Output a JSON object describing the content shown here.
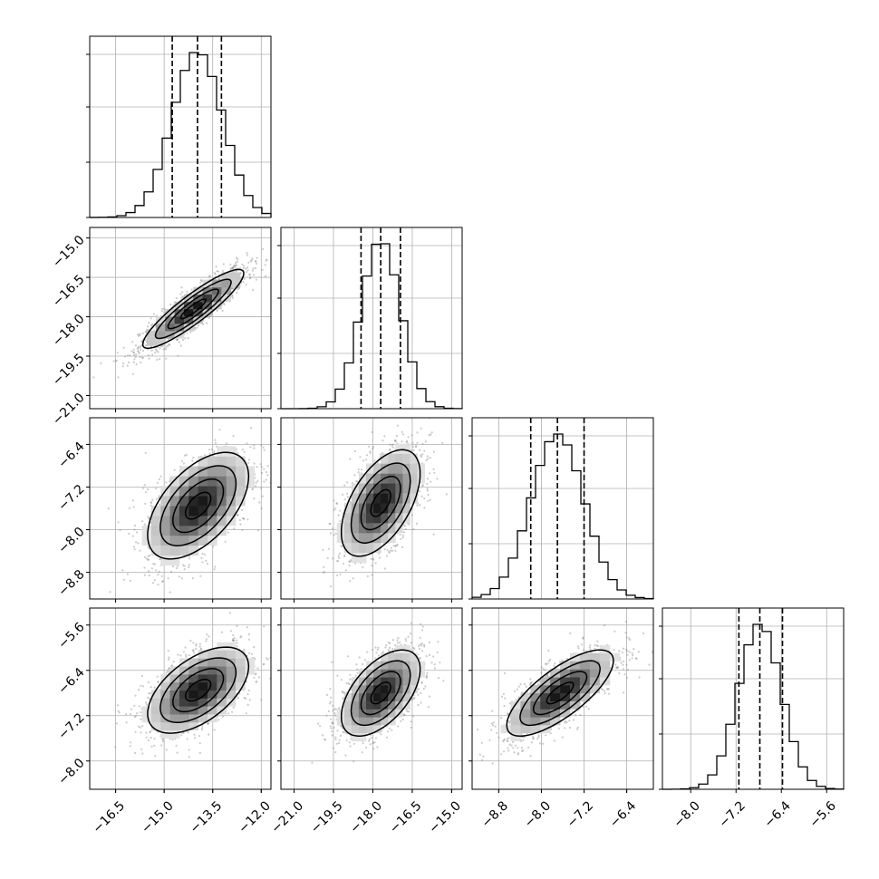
{
  "chart_data": {
    "type": "corner",
    "grid": true,
    "parameters": [
      {
        "id": "p1",
        "range": [
          -17.3,
          -11.7
        ],
        "ticks": [
          "−16.5",
          "−15.0",
          "−13.5",
          "−12.0"
        ],
        "tick_values": [
          -16.5,
          -15.0,
          -13.5,
          -12.0
        ],
        "quantiles": [
          -14.75,
          -13.97,
          -13.23
        ],
        "median": -13.97,
        "sigma": 0.78
      },
      {
        "id": "p2",
        "range": [
          -21.5,
          -14.6
        ],
        "ticks": [
          "−21.0",
          "−19.5",
          "−18.0",
          "−16.5",
          "−15.0"
        ],
        "tick_values": [
          -21.0,
          -19.5,
          -18.0,
          -16.5,
          -15.0
        ],
        "quantiles": [
          -18.45,
          -17.7,
          -16.95
        ],
        "median": -17.7,
        "sigma": 0.75
      },
      {
        "id": "p3",
        "range": [
          -9.3,
          -5.9
        ],
        "ticks": [
          "−8.8",
          "−8.0",
          "−7.2",
          "−6.4"
        ],
        "tick_values": [
          -8.8,
          -8.0,
          -7.2,
          -6.4
        ],
        "quantiles": [
          -8.2,
          -7.7,
          -7.2
        ],
        "median": -7.7,
        "sigma": 0.5
      },
      {
        "id": "p4",
        "range": [
          -8.5,
          -5.3
        ],
        "ticks": [
          "−8.0",
          "−7.2",
          "−6.4",
          "−5.6"
        ],
        "tick_values": [
          -8.0,
          -7.2,
          -6.4,
          -5.6
        ],
        "quantiles": [
          -7.15,
          -6.78,
          -6.38
        ],
        "median": -6.78,
        "sigma": 0.38
      }
    ],
    "pairs": [
      {
        "x": "p1",
        "y": "p2",
        "correlation": 0.9,
        "center": [
          -14.1,
          -17.7
        ]
      },
      {
        "x": "p1",
        "y": "p3",
        "correlation": 0.55,
        "center": [
          -13.95,
          -7.55
        ]
      },
      {
        "x": "p2",
        "y": "p3",
        "correlation": 0.55,
        "center": [
          -17.7,
          -7.5
        ]
      },
      {
        "x": "p1",
        "y": "p4",
        "correlation": 0.55,
        "center": [
          -13.95,
          -6.75
        ]
      },
      {
        "x": "p2",
        "y": "p4",
        "correlation": 0.55,
        "center": [
          -17.7,
          -6.8
        ]
      },
      {
        "x": "p3",
        "y": "p4",
        "correlation": 0.75,
        "center": [
          -7.65,
          -6.8
        ]
      }
    ]
  }
}
